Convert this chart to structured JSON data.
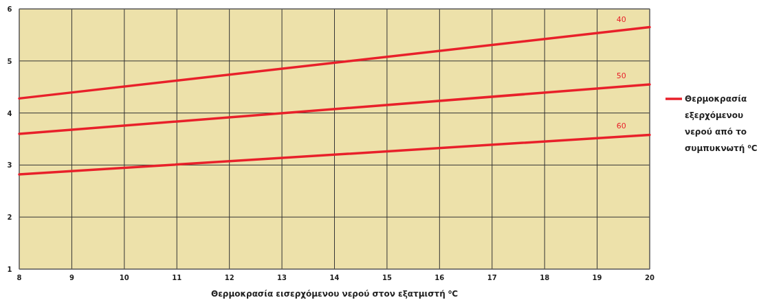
{
  "chart_data": {
    "type": "line",
    "xlabel": "Θερμοκρασία εισερχόμενου νερού στον εξατμιστή ⁰C",
    "legend_title": "Θερμοκρασία εξερχόμενου νερού από το συμπυκνωτή ⁰C",
    "legend": "right",
    "x": [
      8,
      20
    ],
    "series": [
      {
        "name": "40",
        "color": "#e8202a",
        "values": [
          4.28,
          5.65
        ]
      },
      {
        "name": "50",
        "color": "#e8202a",
        "values": [
          3.6,
          4.55
        ]
      },
      {
        "name": "60",
        "color": "#e8202a",
        "values": [
          2.82,
          3.58
        ]
      }
    ],
    "xlim": [
      8,
      20
    ],
    "xticks": [
      8,
      9,
      10,
      11,
      12,
      13,
      14,
      15,
      16,
      17,
      18,
      19,
      20
    ],
    "ylim": [
      1,
      6
    ],
    "yticks": [
      1,
      2,
      3,
      4,
      5,
      6
    ],
    "grid": true,
    "marker": "none",
    "line_style": "solid"
  }
}
